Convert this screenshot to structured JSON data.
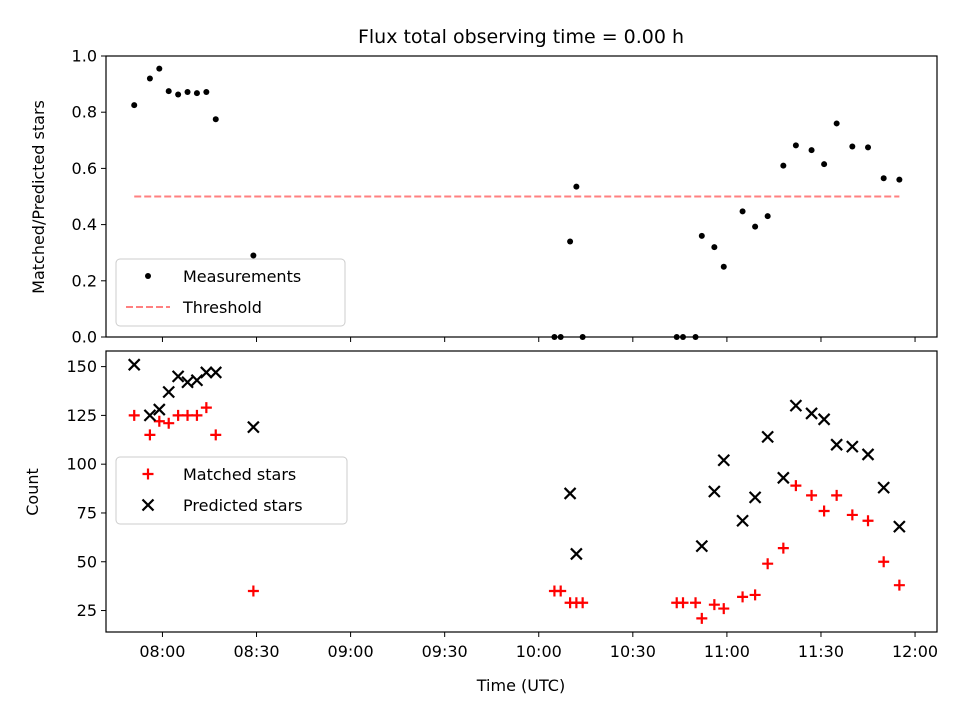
{
  "chart_data": {
    "title": "Flux total observing time = 0.00 h",
    "xlabel": "Time (UTC)",
    "x_ticks": [
      "08:00",
      "08:30",
      "09:00",
      "09:30",
      "10:00",
      "10:30",
      "11:00",
      "11:30",
      "12:00"
    ],
    "colors": {
      "measurements": "#000000",
      "threshold": "#ff8080",
      "matched": "#ff0000",
      "predicted": "#000000"
    },
    "panels": [
      {
        "type": "scatter",
        "ylabel": "Matched/Predicted stars",
        "ylim": [
          0.0,
          1.0
        ],
        "y_ticks": [
          "0.0",
          "0.2",
          "0.4",
          "0.6",
          "0.8",
          "1.0"
        ],
        "legend_position": "lower-left",
        "series": [
          {
            "name": "Measurements",
            "marker": "dot",
            "points": [
              [
                "07:51",
                0.825
              ],
              [
                "07:56",
                0.92
              ],
              [
                "07:59",
                0.955
              ],
              [
                "08:02",
                0.875
              ],
              [
                "08:05",
                0.863
              ],
              [
                "08:08",
                0.872
              ],
              [
                "08:11",
                0.868
              ],
              [
                "08:14",
                0.872
              ],
              [
                "08:17",
                0.775
              ],
              [
                "08:29",
                0.29
              ],
              [
                "10:05",
                0.0
              ],
              [
                "10:07",
                0.0
              ],
              [
                "10:10",
                0.34
              ],
              [
                "10:12",
                0.535
              ],
              [
                "10:14",
                0.0
              ],
              [
                "10:44",
                0.0
              ],
              [
                "10:46",
                0.0
              ],
              [
                "10:50",
                0.0
              ],
              [
                "10:52",
                0.36
              ],
              [
                "10:56",
                0.32
              ],
              [
                "10:59",
                0.25
              ],
              [
                "11:05",
                0.447
              ],
              [
                "11:09",
                0.393
              ],
              [
                "11:13",
                0.43
              ],
              [
                "11:18",
                0.61
              ],
              [
                "11:22",
                0.682
              ],
              [
                "11:27",
                0.665
              ],
              [
                "11:31",
                0.615
              ],
              [
                "11:35",
                0.76
              ],
              [
                "11:40",
                0.678
              ],
              [
                "11:45",
                0.675
              ],
              [
                "11:50",
                0.565
              ],
              [
                "11:55",
                0.56
              ]
            ]
          },
          {
            "name": "Threshold",
            "marker": "dashed-line",
            "points": [
              [
                "07:51",
                0.5
              ],
              [
                "11:55",
                0.5
              ]
            ]
          }
        ]
      },
      {
        "type": "scatter",
        "ylabel": "Count",
        "ylim": [
          14,
          158
        ],
        "y_ticks": [
          "25",
          "50",
          "75",
          "100",
          "125",
          "150"
        ],
        "legend_position": "center-left",
        "series": [
          {
            "name": "Matched stars",
            "marker": "plus",
            "points": [
              [
                "07:51",
                125
              ],
              [
                "07:56",
                115
              ],
              [
                "07:59",
                122
              ],
              [
                "08:02",
                121
              ],
              [
                "08:05",
                125
              ],
              [
                "08:08",
                125
              ],
              [
                "08:11",
                125
              ],
              [
                "08:14",
                129
              ],
              [
                "08:17",
                115
              ],
              [
                "08:29",
                35
              ],
              [
                "10:05",
                35
              ],
              [
                "10:07",
                35
              ],
              [
                "10:10",
                29
              ],
              [
                "10:12",
                29
              ],
              [
                "10:14",
                29
              ],
              [
                "10:44",
                29
              ],
              [
                "10:46",
                29
              ],
              [
                "10:50",
                29
              ],
              [
                "10:52",
                21
              ],
              [
                "10:56",
                28
              ],
              [
                "10:59",
                26
              ],
              [
                "11:05",
                32
              ],
              [
                "11:09",
                33
              ],
              [
                "11:13",
                49
              ],
              [
                "11:18",
                57
              ],
              [
                "11:22",
                89
              ],
              [
                "11:27",
                84
              ],
              [
                "11:31",
                76
              ],
              [
                "11:35",
                84
              ],
              [
                "11:40",
                74
              ],
              [
                "11:45",
                71
              ],
              [
                "11:50",
                50
              ],
              [
                "11:55",
                38
              ]
            ]
          },
          {
            "name": "Predicted stars",
            "marker": "x",
            "points": [
              [
                "07:51",
                151
              ],
              [
                "07:56",
                125
              ],
              [
                "07:59",
                128
              ],
              [
                "08:02",
                137
              ],
              [
                "08:05",
                145
              ],
              [
                "08:08",
                142
              ],
              [
                "08:11",
                143
              ],
              [
                "08:14",
                147
              ],
              [
                "08:17",
                147
              ],
              [
                "08:29",
                119
              ],
              [
                "10:10",
                85
              ],
              [
                "10:12",
                54
              ],
              [
                "10:52",
                58
              ],
              [
                "10:56",
                86
              ],
              [
                "10:59",
                102
              ],
              [
                "11:05",
                71
              ],
              [
                "11:09",
                83
              ],
              [
                "11:13",
                114
              ],
              [
                "11:18",
                93
              ],
              [
                "11:22",
                130
              ],
              [
                "11:27",
                126
              ],
              [
                "11:31",
                123
              ],
              [
                "11:35",
                110
              ],
              [
                "11:40",
                109
              ],
              [
                "11:45",
                105
              ],
              [
                "11:50",
                88
              ],
              [
                "11:55",
                68
              ]
            ]
          }
        ]
      }
    ]
  }
}
